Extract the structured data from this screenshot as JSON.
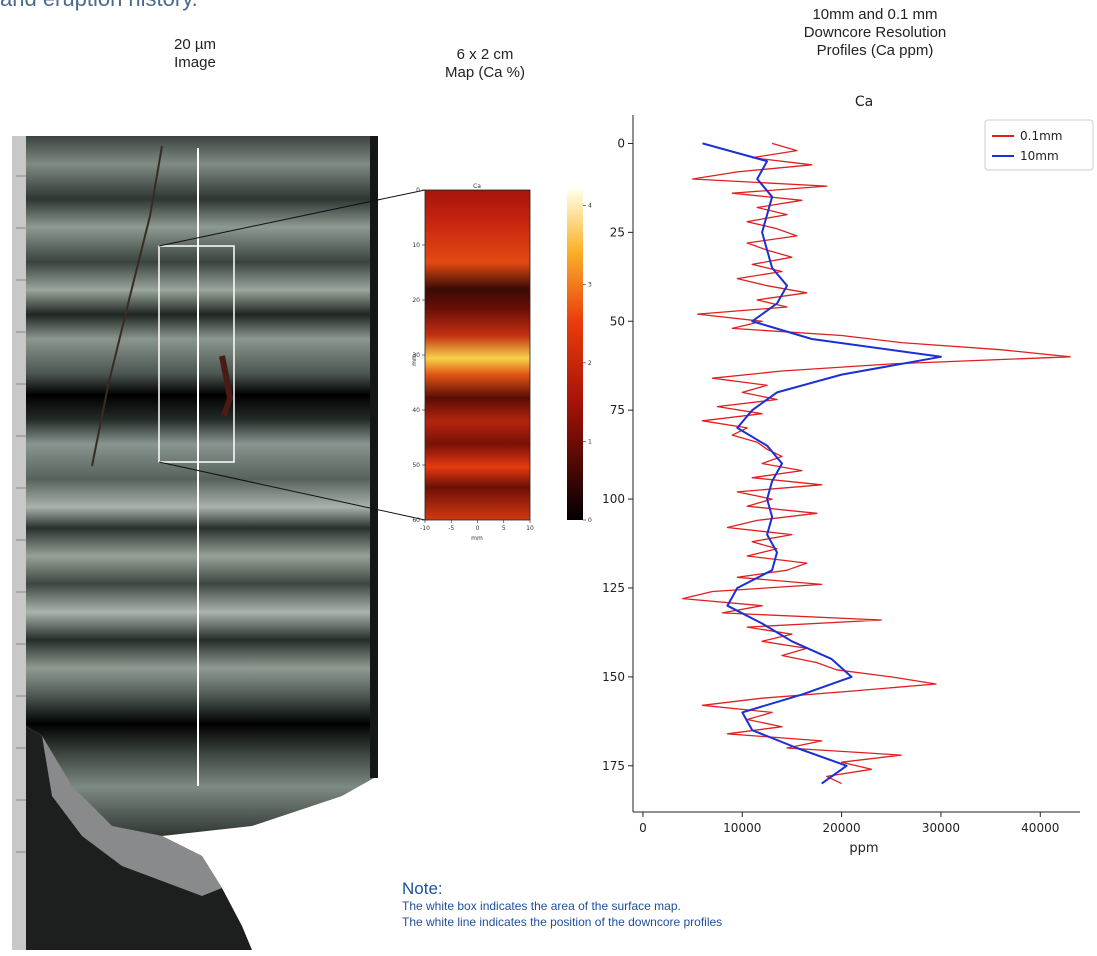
{
  "header": {
    "text": "and eruption history."
  },
  "captions": {
    "image": [
      "20 µm",
      "Image"
    ],
    "map": [
      "6 x 2 cm",
      "Map (Ca %)"
    ],
    "profiles": [
      "10mm and 0.1 mm",
      "Downcore Resolution",
      "Profiles (Ca ppm)"
    ]
  },
  "note": {
    "title": "Note:",
    "lines": [
      "The white box indicates the area of the surface map.",
      "The white line indicates the position of the downcore profiles"
    ]
  },
  "colors": {
    "series_fine": "#e02020",
    "series_coarse": "#1a2fd6",
    "note_text": "#1f4f9a",
    "core_dark": "#2b332f",
    "core_light": "#9aa79d"
  },
  "map_data": {
    "title": "Ca",
    "ylabel": "mm",
    "xlabel": "mm",
    "yticks": [
      "0",
      "10",
      "20",
      "30",
      "40",
      "50",
      "60"
    ],
    "xticks": [
      "-10",
      "-5",
      "0",
      "5",
      "10"
    ],
    "colorbar_ticks": [
      "0",
      "1",
      "2",
      "3",
      "4"
    ]
  },
  "chart_data": {
    "type": "line",
    "title": "Ca",
    "xlabel": "ppm",
    "ylabel": "",
    "xlim": [
      -1000,
      44000
    ],
    "ylim": [
      188,
      -8
    ],
    "y_inverted": true,
    "xticks": [
      0,
      10000,
      20000,
      30000,
      40000
    ],
    "yticks": [
      0,
      25,
      50,
      75,
      100,
      125,
      150,
      175
    ],
    "grid": false,
    "legend_position": "top-right",
    "series": [
      {
        "name": "0.1mm",
        "depth": [
          0,
          2,
          4,
          6,
          8,
          10,
          12,
          14,
          16,
          18,
          20,
          22,
          24,
          26,
          28,
          30,
          32,
          34,
          36,
          38,
          40,
          42,
          44,
          46,
          48,
          50,
          52,
          54,
          56,
          58,
          60,
          62,
          64,
          66,
          68,
          70,
          72,
          74,
          76,
          78,
          80,
          82,
          84,
          86,
          88,
          90,
          92,
          94,
          96,
          98,
          100,
          102,
          104,
          106,
          108,
          110,
          112,
          114,
          116,
          118,
          120,
          122,
          124,
          126,
          128,
          130,
          132,
          134,
          136,
          138,
          140,
          142,
          144,
          146,
          148,
          150,
          152,
          154,
          156,
          158,
          160,
          162,
          164,
          166,
          168,
          170,
          172,
          174,
          176,
          178,
          180
        ],
        "values": [
          13000,
          15500,
          11000,
          17000,
          9500,
          5000,
          18500,
          9000,
          16000,
          11500,
          14500,
          10500,
          13500,
          15500,
          10500,
          12500,
          15000,
          11000,
          14000,
          9500,
          12500,
          16500,
          11500,
          14500,
          5500,
          12000,
          9000,
          20000,
          26000,
          36000,
          43000,
          25000,
          14000,
          7000,
          12500,
          10000,
          13500,
          7500,
          12000,
          6000,
          10500,
          9000,
          11500,
          12500,
          14000,
          12000,
          16000,
          11000,
          18000,
          9500,
          13000,
          10500,
          17500,
          11500,
          8500,
          15000,
          11000,
          13500,
          10500,
          16500,
          14500,
          9500,
          18000,
          7000,
          4000,
          12000,
          8000,
          24000,
          10500,
          15000,
          12000,
          16500,
          14000,
          17500,
          19500,
          25000,
          29500,
          21000,
          12000,
          6000,
          13000,
          10500,
          14000,
          8500,
          18000,
          14500,
          26000,
          20000,
          23000,
          18500,
          20000
        ]
      },
      {
        "name": "10mm",
        "depth": [
          0,
          5,
          10,
          15,
          20,
          25,
          30,
          35,
          40,
          45,
          50,
          55,
          60,
          65,
          70,
          75,
          80,
          85,
          90,
          95,
          100,
          105,
          110,
          115,
          120,
          125,
          130,
          135,
          140,
          145,
          150,
          155,
          160,
          165,
          170,
          175,
          180
        ],
        "values": [
          6000,
          12500,
          11500,
          13000,
          12500,
          12000,
          12500,
          13000,
          14500,
          13500,
          11000,
          17000,
          30000,
          20000,
          13500,
          11000,
          9500,
          12500,
          14000,
          13000,
          12500,
          13000,
          12500,
          13500,
          13000,
          9500,
          8500,
          12000,
          15000,
          19000,
          21000,
          16000,
          10000,
          11000,
          15500,
          20500,
          18000
        ]
      }
    ]
  }
}
